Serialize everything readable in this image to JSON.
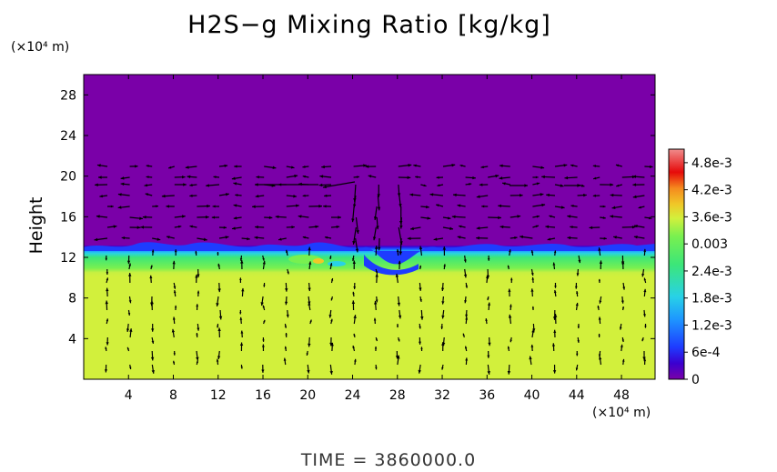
{
  "header": {
    "title": "H2S−g Mixing Ratio [kg/kg]"
  },
  "footer": {
    "time_label": "TIME  =  3860000.0"
  },
  "colors": {
    "background_top": "#7a00a8",
    "layer_blue": "#1e3cff",
    "layer_cyan": "#28d2e6",
    "layer_green": "#3ce678",
    "lower_yellow": "#d2f03c",
    "arrow": "#000000"
  },
  "chart_data": {
    "type": "heatmap",
    "title": "H2S−g Mixing Ratio [kg/kg]",
    "xlabel": "",
    "ylabel": "Height",
    "x_unit": "(×10⁴ m)",
    "y_unit": "(×10⁴ m)",
    "xlim": [
      0,
      51
    ],
    "ylim": [
      0,
      30
    ],
    "x_ticks": [
      4,
      8,
      12,
      16,
      20,
      24,
      28,
      32,
      36,
      40,
      44,
      48
    ],
    "y_ticks": [
      4,
      8,
      12,
      16,
      20,
      24,
      28
    ],
    "grid": false,
    "colorbar": {
      "range": [
        0,
        0.0051
      ],
      "labels": [
        "0",
        "6e-4",
        "1.2e-3",
        "1.8e-3",
        "2.4e-3",
        "0.003",
        "3.6e-3",
        "4.2e-3",
        "4.8e-3"
      ],
      "label_values": [
        0,
        0.0006,
        0.0012,
        0.0018,
        0.0024,
        0.003,
        0.0036,
        0.0042,
        0.0048
      ],
      "colors": [
        "#7a00a8",
        "#3a00d0",
        "#1e3cff",
        "#1e96ff",
        "#28d2e6",
        "#3ce678",
        "#78f050",
        "#d2f03c",
        "#f0c828",
        "#f58a1e",
        "#eb3c1e",
        "#e60a0a",
        "#f08c8c"
      ]
    },
    "regions": [
      {
        "name": "upper",
        "from_height": 12.8,
        "to_height": 30,
        "value": 0
      },
      {
        "name": "layer",
        "from_height": 10.8,
        "to_height": 12.8,
        "value": 0.0024
      },
      {
        "name": "lower",
        "from_height": 0,
        "to_height": 10.8,
        "value": 0.0037
      }
    ],
    "overlay": "wind-vectors"
  }
}
